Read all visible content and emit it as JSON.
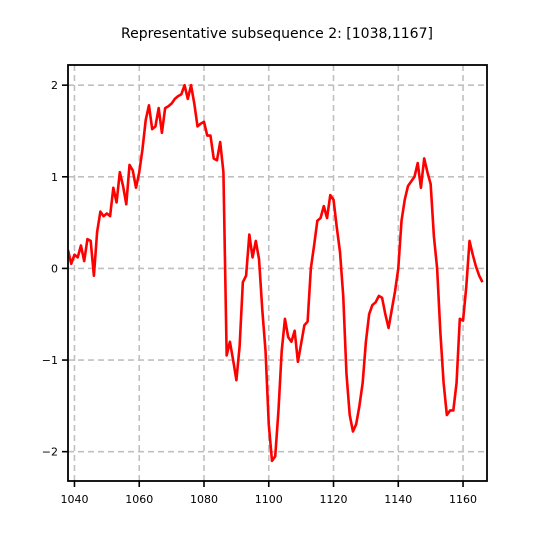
{
  "chart_data": {
    "type": "line",
    "title": "Representative subsequence 2: [1038,1167]",
    "x": [
      1038,
      1039,
      1040,
      1041,
      1042,
      1043,
      1044,
      1045,
      1046,
      1047,
      1048,
      1049,
      1050,
      1051,
      1052,
      1053,
      1054,
      1055,
      1056,
      1057,
      1058,
      1059,
      1060,
      1061,
      1062,
      1063,
      1064,
      1065,
      1066,
      1067,
      1068,
      1069,
      1070,
      1071,
      1072,
      1073,
      1074,
      1075,
      1076,
      1077,
      1078,
      1079,
      1080,
      1081,
      1082,
      1083,
      1084,
      1085,
      1086,
      1087,
      1088,
      1089,
      1090,
      1091,
      1092,
      1093,
      1094,
      1095,
      1096,
      1097,
      1098,
      1099,
      1100,
      1101,
      1102,
      1103,
      1104,
      1105,
      1106,
      1107,
      1108,
      1109,
      1110,
      1111,
      1112,
      1113,
      1114,
      1115,
      1116,
      1117,
      1118,
      1119,
      1120,
      1121,
      1122,
      1123,
      1124,
      1125,
      1126,
      1127,
      1128,
      1129,
      1130,
      1131,
      1132,
      1133,
      1134,
      1135,
      1136,
      1137,
      1138,
      1139,
      1140,
      1141,
      1142,
      1143,
      1144,
      1145,
      1146,
      1147,
      1148,
      1149,
      1150,
      1151,
      1152,
      1153,
      1154,
      1155,
      1156,
      1157,
      1158,
      1159,
      1160,
      1161,
      1162,
      1163,
      1164,
      1165,
      1166
    ],
    "values": [
      0.2,
      0.05,
      0.15,
      0.12,
      0.25,
      0.08,
      0.32,
      0.3,
      -0.08,
      0.4,
      0.62,
      0.57,
      0.6,
      0.57,
      0.88,
      0.72,
      1.05,
      0.9,
      0.7,
      1.13,
      1.07,
      0.88,
      1.05,
      1.3,
      1.62,
      1.78,
      1.52,
      1.55,
      1.75,
      1.48,
      1.75,
      1.77,
      1.8,
      1.85,
      1.88,
      1.9,
      2.0,
      1.85,
      2.0,
      1.8,
      1.55,
      1.58,
      1.6,
      1.45,
      1.45,
      1.2,
      1.18,
      1.38,
      1.05,
      -0.95,
      -0.8,
      -1.0,
      -1.22,
      -0.85,
      -0.15,
      -0.08,
      0.37,
      0.12,
      0.3,
      0.1,
      -0.45,
      -0.9,
      -1.7,
      -2.1,
      -2.05,
      -1.55,
      -0.9,
      -0.55,
      -0.75,
      -0.8,
      -0.68,
      -1.02,
      -0.82,
      -0.62,
      -0.58,
      0.0,
      0.25,
      0.52,
      0.55,
      0.68,
      0.55,
      0.8,
      0.75,
      0.45,
      0.18,
      -0.3,
      -1.15,
      -1.6,
      -1.78,
      -1.7,
      -1.5,
      -1.25,
      -0.8,
      -0.5,
      -0.4,
      -0.37,
      -0.3,
      -0.32,
      -0.5,
      -0.65,
      -0.45,
      -0.25,
      0.0,
      0.52,
      0.75,
      0.9,
      0.95,
      1.0,
      1.15,
      0.88,
      1.2,
      1.05,
      0.92,
      0.35,
      0.0,
      -0.7,
      -1.25,
      -1.6,
      -1.55,
      -1.55,
      -1.25,
      -0.55,
      -0.57,
      -0.2,
      0.3,
      0.15,
      0.02,
      -0.08,
      -0.15
    ],
    "color": "#ff0000",
    "xlim": [
      1038,
      1167.4
    ],
    "ylim": [
      -2.32,
      2.22
    ],
    "xticks": [
      1040,
      1060,
      1080,
      1100,
      1120,
      1140,
      1160
    ],
    "yticks": [
      {
        "value": -2,
        "label": "−2"
      },
      {
        "value": -1,
        "label": "−1"
      },
      0,
      1,
      2
    ],
    "grid": true
  }
}
